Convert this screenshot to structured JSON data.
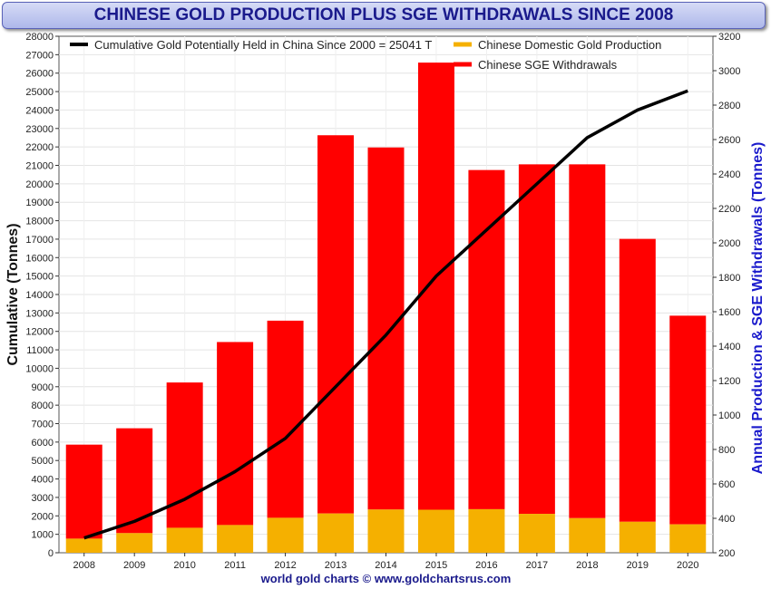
{
  "title": "CHINESE GOLD PRODUCTION PLUS SGE WITHDRAWALS SINCE 2008",
  "footer": "world gold charts © www.goldchartsrus.com",
  "colors": {
    "cumulative": "#000000",
    "production": "#f5b000",
    "sge": "#ff0000",
    "right_axis": "#1a1acc",
    "title": "#1a1a8c"
  },
  "chart_data": {
    "type": "bar",
    "categories": [
      "2008",
      "2009",
      "2010",
      "2011",
      "2012",
      "2013",
      "2014",
      "2015",
      "2016",
      "2017",
      "2018",
      "2019",
      "2020"
    ],
    "series": [
      {
        "name": "Chinese Domestic Gold Production",
        "axis": "right",
        "stack": "annual",
        "values": [
          282,
          314,
          345,
          361,
          403,
          428,
          451,
          450,
          453,
          426,
          401,
          380,
          365
        ]
      },
      {
        "name": "Chinese SGE Withdrawals",
        "axis": "right",
        "stack": "annual",
        "values": [
          546,
          609,
          844,
          1063,
          1145,
          2197,
          2103,
          2597,
          1970,
          2030,
          2055,
          1643,
          1212
        ]
      },
      {
        "name": "Cumulative Gold Potentially Held in China Since 2000",
        "type": "line",
        "axis": "left",
        "values": [
          800,
          1700,
          2900,
          4400,
          6200,
          9000,
          11800,
          15000,
          17500,
          20000,
          22500,
          24000,
          25041
        ]
      }
    ],
    "legend": [
      {
        "label": "Cumulative Gold Potentially Held in China Since 2000 = 25041 T",
        "type": "line",
        "color": "#000000"
      },
      {
        "label": "Chinese Domestic Gold Production",
        "type": "bar",
        "color": "#f5b000"
      },
      {
        "label": "Chinese SGE Withdrawals",
        "type": "bar",
        "color": "#ff0000"
      }
    ],
    "left_axis": {
      "label": "Cumulative (Tonnes)",
      "ylim": [
        0,
        28000
      ],
      "ticks": [
        0,
        1000,
        2000,
        3000,
        4000,
        5000,
        6000,
        7000,
        8000,
        9000,
        10000,
        11000,
        12000,
        13000,
        14000,
        15000,
        16000,
        17000,
        18000,
        19000,
        20000,
        21000,
        22000,
        23000,
        24000,
        25000,
        26000,
        27000,
        28000
      ]
    },
    "right_axis": {
      "label": "Annual Production & SGE Withdrawals (Tonnes)",
      "ylim": [
        200,
        3200
      ],
      "ticks": [
        200,
        400,
        600,
        800,
        1000,
        1200,
        1400,
        1600,
        1800,
        2000,
        2200,
        2400,
        2600,
        2800,
        3000,
        3200
      ]
    },
    "grid": true
  }
}
